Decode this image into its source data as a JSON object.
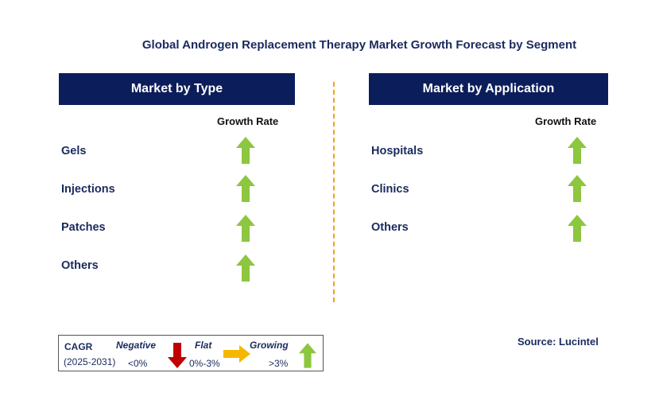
{
  "title": "Global Androgen Replacement Therapy Market Growth Forecast by Segment",
  "left_panel": {
    "header": "Market by Type",
    "growth_label": "Growth Rate",
    "rows": [
      "Gels",
      "Injections",
      "Patches",
      "Others"
    ]
  },
  "right_panel": {
    "header": "Market by Application",
    "growth_label": "Growth Rate",
    "rows": [
      "Hospitals",
      "Clinics",
      "Others"
    ]
  },
  "legend": {
    "cagr": "CAGR",
    "period": "(2025-2031)",
    "negative_label": "Negative",
    "negative_range": "<0%",
    "flat_label": "Flat",
    "flat_range": "0%-3%",
    "growing_label": "Growing",
    "growing_range": ">3%"
  },
  "source": "Source: Lucintel",
  "colors": {
    "header_bg": "#0c1d5b",
    "growing": "#8dc63f",
    "negative": "#c00000",
    "flat": "#f5b800",
    "divider": "#f0a020"
  }
}
